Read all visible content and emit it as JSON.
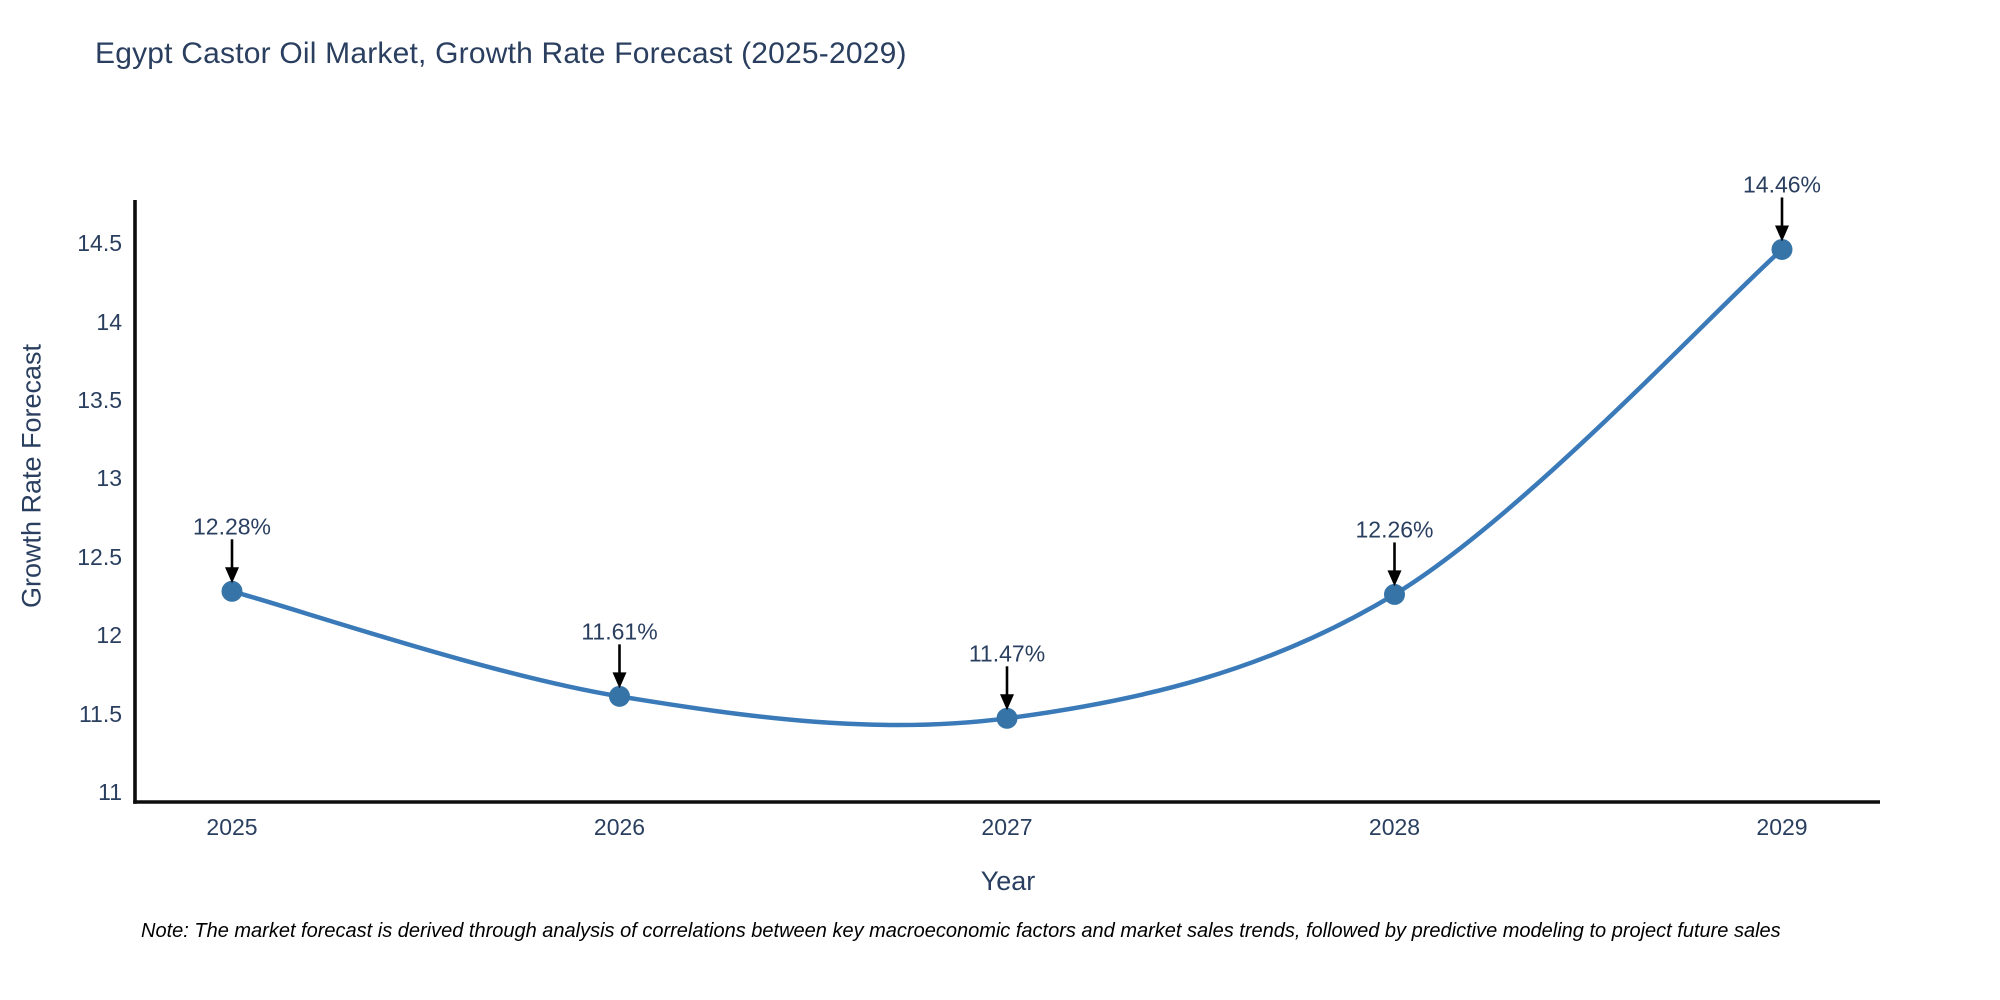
{
  "title": "Egypt Castor Oil Market, Growth Rate Forecast (2025-2029)",
  "note": "Note: The market forecast is derived through analysis of correlations between key macroeconomic factors and market sales trends, followed by predictive modeling to project future sales",
  "chart_data": {
    "type": "line",
    "line_shape": "spline",
    "title": "Egypt Castor Oil Market, Growth Rate Forecast (2025-2029)",
    "xlabel": "Year",
    "ylabel": "Growth Rate Forecast",
    "x": [
      2025,
      2026,
      2027,
      2028,
      2029
    ],
    "xtick_labels": [
      "2025",
      "2026",
      "2027",
      "2028",
      "2029"
    ],
    "series": [
      {
        "name": "Growth Rate Forecast",
        "values": [
          12.28,
          11.61,
          11.47,
          12.26,
          14.46
        ]
      }
    ],
    "point_labels": [
      "12.28%",
      "11.61%",
      "11.47%",
      "12.26%",
      "14.46%"
    ],
    "yticks": [
      11,
      11.5,
      12,
      12.5,
      13,
      13.5,
      14,
      14.5
    ],
    "ylim": [
      10.93,
      14.78
    ],
    "grid": false,
    "legend": "none",
    "markers": true,
    "annotations_have_arrows": true,
    "colors": {
      "line": "#3a7ab8",
      "marker": "#3674a8",
      "arrow": "#000000",
      "axis_line": "#0d0d0d",
      "chart_text": "#2a3f5f",
      "note_text": "#000000",
      "background": "#ffffff"
    }
  }
}
